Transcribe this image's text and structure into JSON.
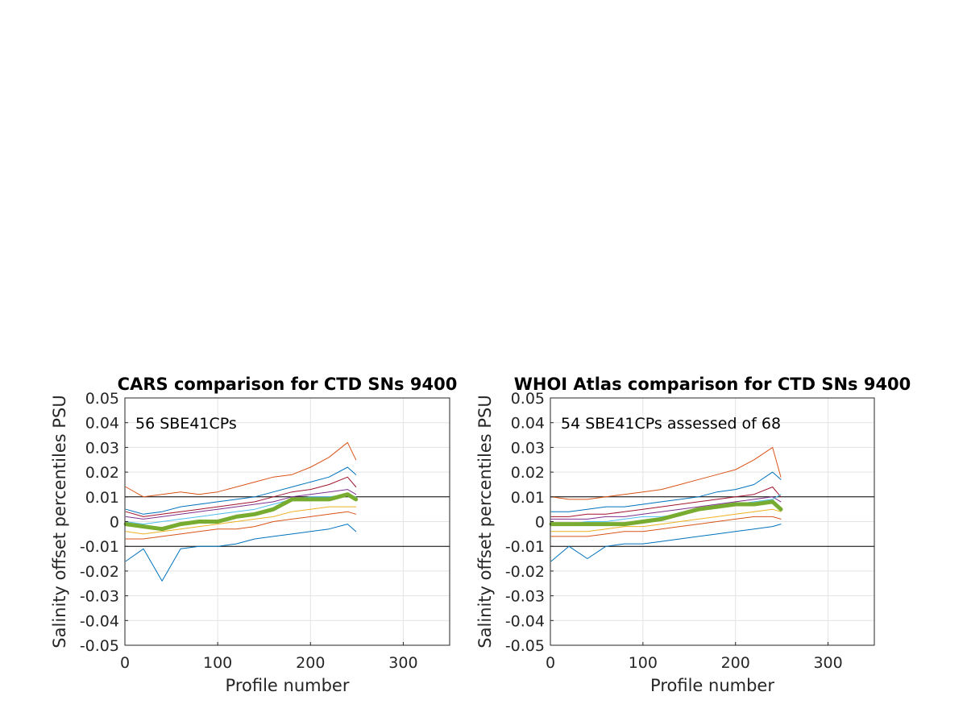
{
  "chart_data": [
    {
      "type": "line",
      "title": "CARS comparison for CTD SNs 9400",
      "xlabel": "Profile number",
      "ylabel": "Salinity offset percentiles PSU",
      "annotation": "56 SBE41CPs",
      "xlim": [
        0,
        350
      ],
      "ylim": [
        -0.05,
        0.05
      ],
      "xticks": [
        "0",
        "100",
        "200",
        "300"
      ],
      "yticks": [
        "-0.05",
        "-0.04",
        "-0.03",
        "-0.02",
        "-0.01",
        "0",
        "0.01",
        "0.02",
        "0.03",
        "0.04",
        "0.05"
      ],
      "grid": true,
      "reference_lines": [
        0.01,
        -0.01
      ],
      "x": [
        1,
        20,
        40,
        60,
        80,
        100,
        120,
        140,
        160,
        180,
        200,
        220,
        240,
        249
      ],
      "series": [
        {
          "color": "#D95319",
          "width": 1,
          "values": [
            0.014,
            0.01,
            0.011,
            0.012,
            0.011,
            0.012,
            0.014,
            0.016,
            0.018,
            0.019,
            0.022,
            0.026,
            0.032,
            0.025
          ]
        },
        {
          "color": "#0072BD",
          "width": 1,
          "values": [
            0.005,
            0.003,
            0.004,
            0.006,
            0.007,
            0.008,
            0.009,
            0.01,
            0.012,
            0.014,
            0.016,
            0.018,
            0.022,
            0.019
          ]
        },
        {
          "color": "#A2142F",
          "width": 1,
          "values": [
            0.004,
            0.002,
            0.003,
            0.004,
            0.005,
            0.006,
            0.007,
            0.008,
            0.01,
            0.012,
            0.013,
            0.015,
            0.018,
            0.014
          ]
        },
        {
          "color": "#7E2F8E",
          "width": 1,
          "values": [
            0.002,
            0.001,
            0.002,
            0.003,
            0.004,
            0.005,
            0.006,
            0.007,
            0.008,
            0.01,
            0.011,
            0.012,
            0.013,
            0.011
          ]
        },
        {
          "color": "#4DBEEE",
          "width": 1,
          "values": [
            0.0,
            -0.001,
            0.0,
            0.001,
            0.002,
            0.003,
            0.004,
            0.005,
            0.007,
            0.009,
            0.01,
            0.01,
            0.011,
            0.01
          ]
        },
        {
          "color": "#EDB120",
          "width": 1,
          "values": [
            -0.004,
            -0.005,
            -0.004,
            -0.003,
            -0.002,
            -0.001,
            0.0,
            0.001,
            0.002,
            0.004,
            0.005,
            0.006,
            0.006,
            0.006
          ]
        },
        {
          "color": "#D95319",
          "width": 1,
          "values": [
            -0.007,
            -0.007,
            -0.006,
            -0.005,
            -0.004,
            -0.003,
            -0.003,
            -0.002,
            0.0,
            0.001,
            0.002,
            0.003,
            0.004,
            0.003
          ]
        },
        {
          "color": "#0072BD",
          "width": 1,
          "values": [
            -0.016,
            -0.011,
            -0.024,
            -0.011,
            -0.01,
            -0.01,
            -0.009,
            -0.007,
            -0.006,
            -0.005,
            -0.004,
            -0.003,
            -0.001,
            -0.004
          ]
        },
        {
          "color": "#77AC30",
          "width": 5,
          "values": [
            -0.001,
            -0.002,
            -0.003,
            -0.001,
            0.0,
            0.0,
            0.002,
            0.003,
            0.005,
            0.009,
            0.009,
            0.009,
            0.011,
            0.009
          ]
        }
      ]
    },
    {
      "type": "line",
      "title": "WHOI Atlas comparison for CTD SNs 9400",
      "xlabel": "Profile number",
      "ylabel": "Salinity offset percentiles PSU",
      "annotation": "54 SBE41CPs assessed of 68",
      "xlim": [
        0,
        350
      ],
      "ylim": [
        -0.05,
        0.05
      ],
      "xticks": [
        "0",
        "100",
        "200",
        "300"
      ],
      "yticks": [
        "-0.05",
        "-0.04",
        "-0.03",
        "-0.02",
        "-0.01",
        "0",
        "0.01",
        "0.02",
        "0.03",
        "0.04",
        "0.05"
      ],
      "grid": true,
      "reference_lines": [
        0.01,
        -0.01
      ],
      "x": [
        1,
        20,
        40,
        60,
        80,
        100,
        120,
        140,
        160,
        180,
        200,
        220,
        240,
        249
      ],
      "series": [
        {
          "color": "#D95319",
          "width": 1,
          "values": [
            0.01,
            0.009,
            0.009,
            0.01,
            0.011,
            0.012,
            0.013,
            0.015,
            0.017,
            0.019,
            0.021,
            0.025,
            0.03,
            0.018
          ]
        },
        {
          "color": "#0072BD",
          "width": 1,
          "values": [
            0.004,
            0.004,
            0.005,
            0.006,
            0.006,
            0.007,
            0.008,
            0.009,
            0.01,
            0.012,
            0.013,
            0.015,
            0.02,
            0.017
          ]
        },
        {
          "color": "#A2142F",
          "width": 1,
          "values": [
            0.002,
            0.002,
            0.003,
            0.003,
            0.004,
            0.005,
            0.006,
            0.007,
            0.008,
            0.009,
            0.01,
            0.011,
            0.014,
            0.01
          ]
        },
        {
          "color": "#7E2F8E",
          "width": 1,
          "values": [
            0.001,
            0.001,
            0.001,
            0.002,
            0.002,
            0.003,
            0.004,
            0.005,
            0.006,
            0.007,
            0.008,
            0.009,
            0.01,
            0.008
          ]
        },
        {
          "color": "#4DBEEE",
          "width": 1,
          "values": [
            -0.001,
            -0.001,
            0.0,
            0.0,
            0.001,
            0.002,
            0.002,
            0.003,
            0.005,
            0.006,
            0.007,
            0.008,
            0.009,
            0.011
          ]
        },
        {
          "color": "#EDB120",
          "width": 1,
          "values": [
            -0.004,
            -0.004,
            -0.004,
            -0.003,
            -0.002,
            -0.002,
            -0.001,
            0.0,
            0.001,
            0.002,
            0.003,
            0.004,
            0.005,
            0.004
          ]
        },
        {
          "color": "#D95319",
          "width": 1,
          "values": [
            -0.006,
            -0.006,
            -0.006,
            -0.005,
            -0.004,
            -0.004,
            -0.003,
            -0.002,
            -0.001,
            0.0,
            0.001,
            0.002,
            0.002,
            0.001
          ]
        },
        {
          "color": "#0072BD",
          "width": 1,
          "values": [
            -0.016,
            -0.01,
            -0.015,
            -0.01,
            -0.009,
            -0.009,
            -0.008,
            -0.007,
            -0.006,
            -0.005,
            -0.004,
            -0.003,
            -0.002,
            -0.001
          ]
        },
        {
          "color": "#77AC30",
          "width": 5,
          "values": [
            -0.001,
            -0.001,
            -0.001,
            -0.001,
            -0.001,
            0.0,
            0.001,
            0.003,
            0.005,
            0.006,
            0.007,
            0.007,
            0.008,
            0.005
          ]
        }
      ]
    }
  ]
}
